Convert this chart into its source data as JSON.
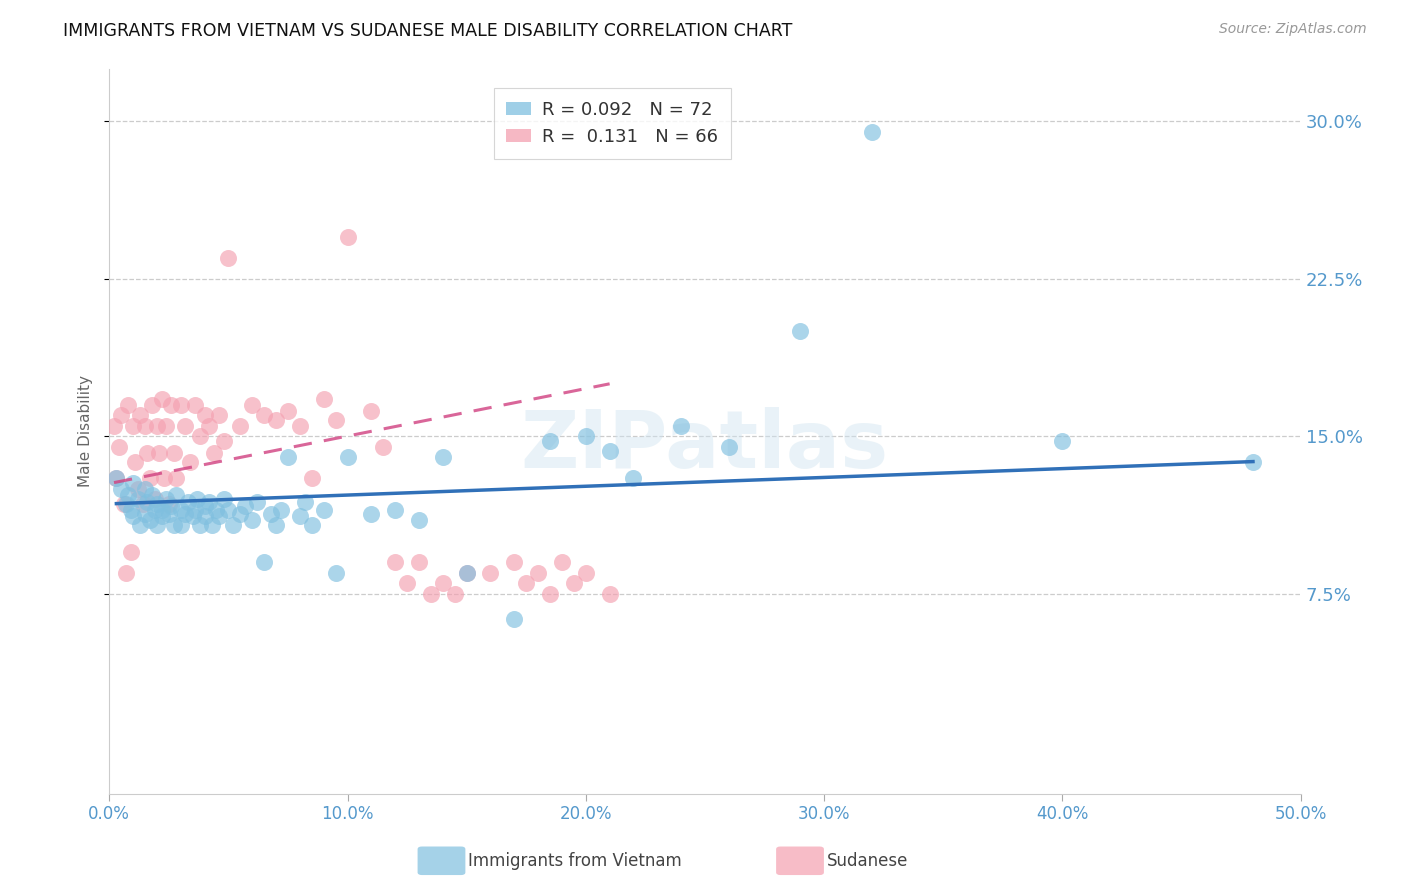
{
  "title": "IMMIGRANTS FROM VIETNAM VS SUDANESE MALE DISABILITY CORRELATION CHART",
  "source": "Source: ZipAtlas.com",
  "ylabel": "Male Disability",
  "xlabel": "",
  "xlim": [
    0.0,
    0.5
  ],
  "ylim": [
    -0.02,
    0.325
  ],
  "xticks": [
    0.0,
    0.1,
    0.2,
    0.3,
    0.4,
    0.5
  ],
  "xtick_labels": [
    "0.0%",
    "10.0%",
    "20.0%",
    "30.0%",
    "40.0%",
    "50.0%"
  ],
  "yticks": [
    0.075,
    0.15,
    0.225,
    0.3
  ],
  "ytick_labels": [
    "7.5%",
    "15.0%",
    "22.5%",
    "30.0%"
  ],
  "legend_r1": "R = 0.092",
  "legend_n1": "N = 72",
  "legend_r2": "R =  0.131",
  "legend_n2": "N = 66",
  "color_vietnam": "#7fbfdf",
  "color_sudanese": "#f4a0b0",
  "color_line_vietnam": "#3070b8",
  "color_line_sudanese": "#d04080",
  "color_ticks": "#5599cc",
  "watermark": "ZIPatlas",
  "background_color": "#ffffff",
  "grid_color": "#cccccc",
  "title_color": "#222222",
  "vietnam_scatter_x": [
    0.003,
    0.005,
    0.007,
    0.008,
    0.009,
    0.01,
    0.01,
    0.012,
    0.013,
    0.015,
    0.015,
    0.016,
    0.017,
    0.018,
    0.019,
    0.02,
    0.02,
    0.022,
    0.022,
    0.024,
    0.025,
    0.026,
    0.027,
    0.028,
    0.03,
    0.03,
    0.032,
    0.033,
    0.035,
    0.036,
    0.037,
    0.038,
    0.04,
    0.04,
    0.042,
    0.043,
    0.045,
    0.046,
    0.048,
    0.05,
    0.052,
    0.055,
    0.057,
    0.06,
    0.062,
    0.065,
    0.068,
    0.07,
    0.072,
    0.075,
    0.08,
    0.082,
    0.085,
    0.09,
    0.095,
    0.1,
    0.11,
    0.12,
    0.13,
    0.14,
    0.15,
    0.17,
    0.185,
    0.2,
    0.21,
    0.22,
    0.24,
    0.26,
    0.29,
    0.32,
    0.4,
    0.48
  ],
  "vietnam_scatter_y": [
    0.13,
    0.125,
    0.118,
    0.122,
    0.115,
    0.128,
    0.112,
    0.12,
    0.108,
    0.125,
    0.113,
    0.119,
    0.11,
    0.122,
    0.115,
    0.118,
    0.108,
    0.115,
    0.112,
    0.12,
    0.113,
    0.117,
    0.108,
    0.122,
    0.115,
    0.108,
    0.113,
    0.119,
    0.112,
    0.115,
    0.12,
    0.108,
    0.117,
    0.112,
    0.119,
    0.108,
    0.115,
    0.112,
    0.12,
    0.115,
    0.108,
    0.113,
    0.117,
    0.11,
    0.119,
    0.09,
    0.113,
    0.108,
    0.115,
    0.14,
    0.112,
    0.119,
    0.108,
    0.115,
    0.085,
    0.14,
    0.113,
    0.115,
    0.11,
    0.14,
    0.085,
    0.063,
    0.148,
    0.15,
    0.143,
    0.13,
    0.155,
    0.145,
    0.2,
    0.295,
    0.148,
    0.138
  ],
  "sudanese_scatter_x": [
    0.002,
    0.003,
    0.004,
    0.005,
    0.006,
    0.007,
    0.008,
    0.009,
    0.01,
    0.011,
    0.012,
    0.013,
    0.014,
    0.015,
    0.016,
    0.017,
    0.018,
    0.019,
    0.02,
    0.021,
    0.022,
    0.023,
    0.024,
    0.025,
    0.026,
    0.027,
    0.028,
    0.03,
    0.032,
    0.034,
    0.036,
    0.038,
    0.04,
    0.042,
    0.044,
    0.046,
    0.048,
    0.05,
    0.055,
    0.06,
    0.065,
    0.07,
    0.075,
    0.08,
    0.085,
    0.09,
    0.095,
    0.1,
    0.11,
    0.115,
    0.12,
    0.125,
    0.13,
    0.135,
    0.14,
    0.145,
    0.15,
    0.16,
    0.17,
    0.175,
    0.18,
    0.185,
    0.19,
    0.195,
    0.2,
    0.21
  ],
  "sudanese_scatter_y": [
    0.155,
    0.13,
    0.145,
    0.16,
    0.118,
    0.085,
    0.165,
    0.095,
    0.155,
    0.138,
    0.125,
    0.16,
    0.118,
    0.155,
    0.142,
    0.13,
    0.165,
    0.12,
    0.155,
    0.142,
    0.168,
    0.13,
    0.155,
    0.118,
    0.165,
    0.142,
    0.13,
    0.165,
    0.155,
    0.138,
    0.165,
    0.15,
    0.16,
    0.155,
    0.142,
    0.16,
    0.148,
    0.235,
    0.155,
    0.165,
    0.16,
    0.158,
    0.162,
    0.155,
    0.13,
    0.168,
    0.158,
    0.245,
    0.162,
    0.145,
    0.09,
    0.08,
    0.09,
    0.075,
    0.08,
    0.075,
    0.085,
    0.085,
    0.09,
    0.08,
    0.085,
    0.075,
    0.09,
    0.08,
    0.085,
    0.075
  ],
  "viet_trendline_x": [
    0.003,
    0.48
  ],
  "viet_trendline_y": [
    0.118,
    0.138
  ],
  "sud_trendline_x": [
    0.002,
    0.21
  ],
  "sud_trendline_y": [
    0.128,
    0.175
  ]
}
